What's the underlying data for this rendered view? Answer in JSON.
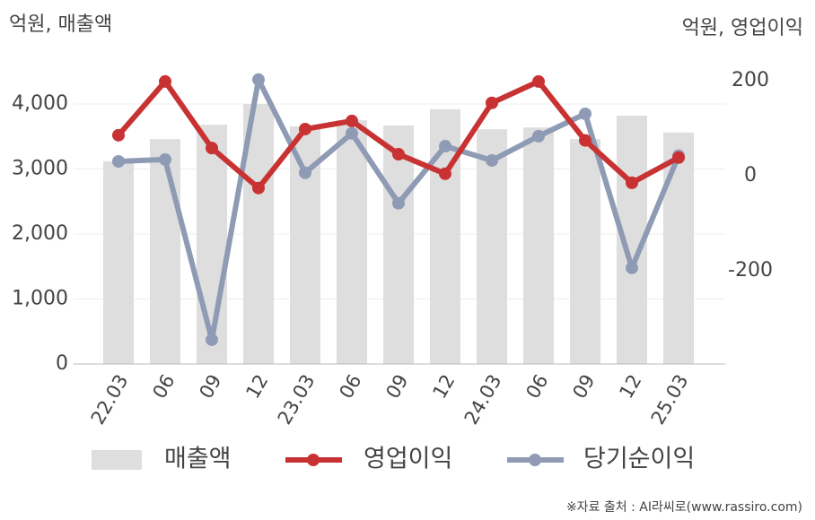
{
  "chart_data": {
    "type": "combo",
    "y_label": "억원, 매출액",
    "y2_label": "억원, 영업이익",
    "source": "※자료 출처 : AI라씨로(www.rassiro.com)",
    "categories": [
      "22.03",
      "06",
      "09",
      "12",
      "23.03",
      "06",
      "09",
      "12",
      "24.03",
      "06",
      "09",
      "12",
      "25.03"
    ],
    "series": [
      {
        "name": "매출액",
        "type": "bar",
        "axis": "y",
        "color": "#dedede",
        "values": [
          3120,
          3460,
          3680,
          4000,
          3655,
          3750,
          3670,
          3920,
          3610,
          3640,
          3460,
          3820,
          3560
        ]
      },
      {
        "name": "영업이익",
        "type": "line",
        "axis": "y2",
        "color": "#c83232",
        "values": [
          85,
          198,
          58,
          -26,
          98,
          115,
          45,
          4,
          153,
          198,
          74,
          -15,
          38
        ]
      },
      {
        "name": "당기순이익",
        "type": "line",
        "axis": "y2",
        "color": "#8f9bb5",
        "values": [
          30,
          34,
          -345,
          202,
          6,
          89,
          -58,
          62,
          32,
          83,
          130,
          -194,
          42
        ]
      }
    ],
    "ylim": [
      0,
      4800
    ],
    "yticks": [
      0,
      {
        "value": 1000,
        "label": "1,000"
      },
      {
        "value": 2000,
        "label": "2,000"
      },
      {
        "value": 3000,
        "label": "3,000"
      },
      {
        "value": 4000,
        "label": "4,000"
      }
    ],
    "y2lim": [
      -396,
      260
    ],
    "y2ticks": [
      -200,
      0,
      200
    ],
    "grid": true
  }
}
